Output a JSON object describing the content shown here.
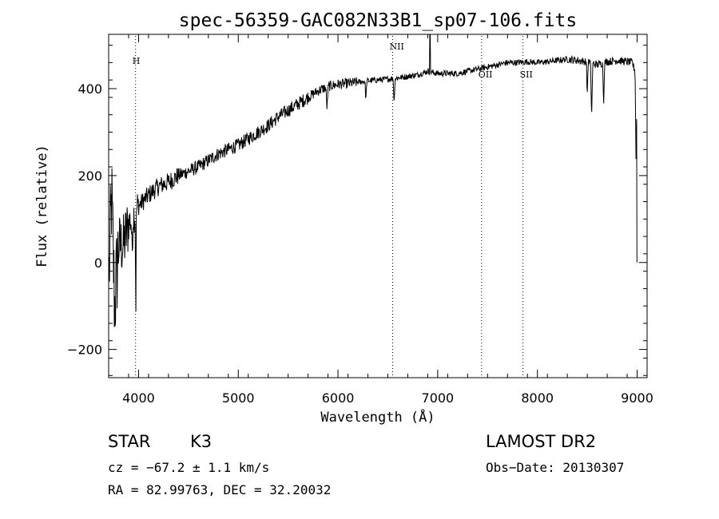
{
  "chart_data": {
    "type": "line",
    "title": "spec-56359-GAC082N33B1_sp07-106.fits",
    "xlabel": "Wavelength (Å)",
    "ylabel": "Flux (relative)",
    "xlim": [
      3700,
      9100
    ],
    "ylim": [
      -265,
      525
    ],
    "xticks": [
      4000,
      5000,
      6000,
      7000,
      8000,
      9000
    ],
    "yticks": [
      -200,
      0,
      200,
      400
    ],
    "grid": false,
    "series": [
      {
        "x": [
          3700,
          3730,
          3760,
          3800,
          3850,
          3900,
          3950,
          4000,
          4100,
          4200,
          4300,
          4400,
          4500,
          4600,
          4700,
          4800,
          4900,
          5000,
          5100,
          5200,
          5300,
          5400,
          5500,
          5600,
          5700,
          5800,
          5900,
          6000,
          6100,
          6200,
          6300,
          6400,
          6500,
          6600,
          6700,
          6800,
          6900,
          7000,
          7100,
          7200,
          7300,
          7400,
          7500,
          7600,
          7700,
          7800,
          7900,
          8000,
          8100,
          8200,
          8300,
          8400,
          8500,
          8600,
          8700,
          8800,
          8900,
          8950,
          8980,
          9000
        ],
        "y": [
          -60,
          150,
          -100,
          40,
          40,
          90,
          110,
          130,
          155,
          175,
          185,
          200,
          210,
          220,
          235,
          250,
          260,
          270,
          285,
          300,
          315,
          335,
          350,
          365,
          380,
          395,
          405,
          410,
          412,
          415,
          418,
          420,
          422,
          425,
          428,
          432,
          440,
          435,
          435,
          435,
          440,
          445,
          450,
          455,
          460,
          460,
          462,
          460,
          462,
          465,
          468,
          465,
          462,
          455,
          462,
          465,
          462,
          460,
          440,
          0
        ]
      }
    ],
    "line_markers": [
      {
        "label": "H",
        "x": 3970
      },
      {
        "label": "NII",
        "x": 6548
      },
      {
        "label": "OII",
        "x": 7440
      },
      {
        "label": "SII",
        "x": 7855
      }
    ]
  },
  "info": {
    "object_type": "STAR",
    "subclass": "K3",
    "survey": "LAMOST DR2",
    "velocity": "cz = −67.2 ± 1.1 km/s",
    "obs_date": "Obs−Date: 20130307",
    "coords": "RA =  82.99763, DEC =  32.20032"
  }
}
